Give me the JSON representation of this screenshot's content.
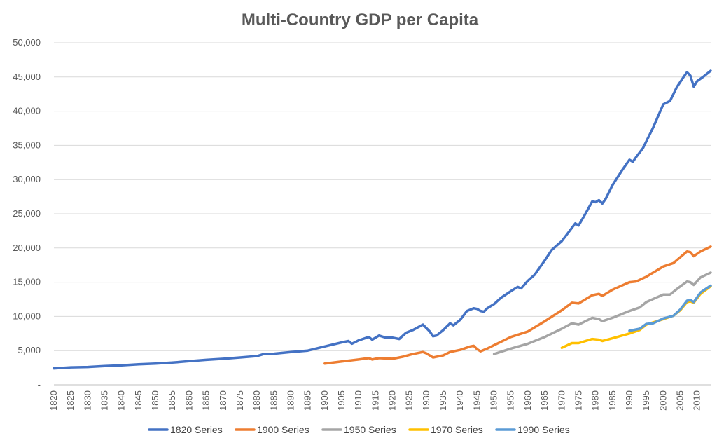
{
  "chart_data": {
    "type": "line",
    "title": "Multi-Country GDP per Capita",
    "xlabel": "",
    "ylabel": "",
    "xlim": [
      1820,
      2014
    ],
    "ylim": [
      0,
      50000
    ],
    "y_ticks": [
      0,
      5000,
      10000,
      15000,
      20000,
      25000,
      30000,
      35000,
      40000,
      45000,
      50000
    ],
    "y_tick_labels": [
      "-",
      "5,000",
      "10,000",
      "15,000",
      "20,000",
      "25,000",
      "30,000",
      "35,000",
      "40,000",
      "45,000",
      "50,000"
    ],
    "x_ticks": [
      1820,
      1825,
      1830,
      1835,
      1840,
      1845,
      1850,
      1855,
      1860,
      1865,
      1870,
      1875,
      1880,
      1885,
      1890,
      1895,
      1900,
      1905,
      1910,
      1915,
      1920,
      1925,
      1930,
      1935,
      1940,
      1945,
      1950,
      1955,
      1960,
      1965,
      1970,
      1975,
      1980,
      1985,
      1990,
      1995,
      2000,
      2005,
      2010
    ],
    "grid": "horizontal",
    "legend_position": "bottom",
    "series": [
      {
        "name": "1820 Series",
        "color": "#4472c4",
        "points": [
          [
            1820,
            2400
          ],
          [
            1825,
            2550
          ],
          [
            1830,
            2600
          ],
          [
            1835,
            2750
          ],
          [
            1840,
            2850
          ],
          [
            1845,
            3000
          ],
          [
            1850,
            3100
          ],
          [
            1855,
            3250
          ],
          [
            1860,
            3450
          ],
          [
            1865,
            3650
          ],
          [
            1870,
            3800
          ],
          [
            1875,
            4000
          ],
          [
            1880,
            4200
          ],
          [
            1882,
            4500
          ],
          [
            1885,
            4550
          ],
          [
            1890,
            4800
          ],
          [
            1895,
            5000
          ],
          [
            1900,
            5600
          ],
          [
            1905,
            6200
          ],
          [
            1907,
            6400
          ],
          [
            1908,
            6000
          ],
          [
            1910,
            6500
          ],
          [
            1913,
            7000
          ],
          [
            1914,
            6600
          ],
          [
            1916,
            7200
          ],
          [
            1918,
            6900
          ],
          [
            1920,
            6900
          ],
          [
            1922,
            6700
          ],
          [
            1924,
            7600
          ],
          [
            1926,
            8000
          ],
          [
            1929,
            8800
          ],
          [
            1930,
            8300
          ],
          [
            1931,
            7800
          ],
          [
            1932,
            7100
          ],
          [
            1933,
            7200
          ],
          [
            1935,
            8000
          ],
          [
            1937,
            9000
          ],
          [
            1938,
            8700
          ],
          [
            1940,
            9500
          ],
          [
            1942,
            10800
          ],
          [
            1944,
            11200
          ],
          [
            1945,
            11100
          ],
          [
            1946,
            10800
          ],
          [
            1947,
            10700
          ],
          [
            1948,
            11200
          ],
          [
            1950,
            11800
          ],
          [
            1952,
            12700
          ],
          [
            1955,
            13700
          ],
          [
            1957,
            14300
          ],
          [
            1958,
            14100
          ],
          [
            1960,
            15200
          ],
          [
            1962,
            16100
          ],
          [
            1965,
            18200
          ],
          [
            1967,
            19700
          ],
          [
            1970,
            21000
          ],
          [
            1972,
            22300
          ],
          [
            1974,
            23600
          ],
          [
            1975,
            23300
          ],
          [
            1977,
            25000
          ],
          [
            1979,
            26800
          ],
          [
            1980,
            26700
          ],
          [
            1981,
            27000
          ],
          [
            1982,
            26500
          ],
          [
            1983,
            27200
          ],
          [
            1985,
            29200
          ],
          [
            1988,
            31500
          ],
          [
            1990,
            32900
          ],
          [
            1991,
            32600
          ],
          [
            1992,
            33300
          ],
          [
            1994,
            34600
          ],
          [
            1997,
            37600
          ],
          [
            2000,
            41000
          ],
          [
            2002,
            41500
          ],
          [
            2004,
            43500
          ],
          [
            2006,
            45000
          ],
          [
            2007,
            45700
          ],
          [
            2008,
            45200
          ],
          [
            2009,
            43600
          ],
          [
            2010,
            44400
          ],
          [
            2012,
            45100
          ],
          [
            2014,
            45900
          ]
        ]
      },
      {
        "name": "1900 Series",
        "color": "#ed7d31",
        "points": [
          [
            1900,
            3100
          ],
          [
            1905,
            3400
          ],
          [
            1910,
            3700
          ],
          [
            1913,
            3900
          ],
          [
            1914,
            3700
          ],
          [
            1916,
            3900
          ],
          [
            1920,
            3800
          ],
          [
            1923,
            4100
          ],
          [
            1926,
            4500
          ],
          [
            1929,
            4800
          ],
          [
            1930,
            4600
          ],
          [
            1932,
            4000
          ],
          [
            1935,
            4300
          ],
          [
            1937,
            4800
          ],
          [
            1940,
            5100
          ],
          [
            1943,
            5600
          ],
          [
            1944,
            5700
          ],
          [
            1945,
            5200
          ],
          [
            1946,
            4900
          ],
          [
            1948,
            5300
          ],
          [
            1950,
            5800
          ],
          [
            1955,
            7000
          ],
          [
            1960,
            7800
          ],
          [
            1965,
            9300
          ],
          [
            1970,
            10900
          ],
          [
            1973,
            12000
          ],
          [
            1975,
            11900
          ],
          [
            1979,
            13100
          ],
          [
            1981,
            13300
          ],
          [
            1982,
            13000
          ],
          [
            1985,
            13900
          ],
          [
            1990,
            15000
          ],
          [
            1992,
            15100
          ],
          [
            1995,
            15800
          ],
          [
            2000,
            17300
          ],
          [
            2003,
            17800
          ],
          [
            2007,
            19500
          ],
          [
            2008,
            19400
          ],
          [
            2009,
            18800
          ],
          [
            2011,
            19500
          ],
          [
            2014,
            20200
          ]
        ]
      },
      {
        "name": "1950 Series",
        "color": "#a5a5a5",
        "points": [
          [
            1950,
            4500
          ],
          [
            1955,
            5300
          ],
          [
            1960,
            6000
          ],
          [
            1965,
            7000
          ],
          [
            1970,
            8200
          ],
          [
            1973,
            9000
          ],
          [
            1975,
            8800
          ],
          [
            1979,
            9800
          ],
          [
            1981,
            9600
          ],
          [
            1982,
            9300
          ],
          [
            1985,
            9800
          ],
          [
            1990,
            10800
          ],
          [
            1993,
            11300
          ],
          [
            1995,
            12100
          ],
          [
            2000,
            13200
          ],
          [
            2002,
            13200
          ],
          [
            2004,
            14000
          ],
          [
            2007,
            15100
          ],
          [
            2008,
            15000
          ],
          [
            2009,
            14600
          ],
          [
            2011,
            15700
          ],
          [
            2014,
            16400
          ]
        ]
      },
      {
        "name": "1970 Series",
        "color": "#ffc000",
        "points": [
          [
            1970,
            5400
          ],
          [
            1973,
            6100
          ],
          [
            1975,
            6100
          ],
          [
            1979,
            6700
          ],
          [
            1981,
            6600
          ],
          [
            1982,
            6400
          ],
          [
            1985,
            6800
          ],
          [
            1990,
            7500
          ],
          [
            1993,
            8000
          ],
          [
            1995,
            8800
          ],
          [
            2000,
            9600
          ],
          [
            2003,
            10100
          ],
          [
            2005,
            10900
          ],
          [
            2007,
            12100
          ],
          [
            2008,
            12200
          ],
          [
            2009,
            12000
          ],
          [
            2011,
            13300
          ],
          [
            2014,
            14400
          ]
        ]
      },
      {
        "name": "1990 Series",
        "color": "#5b9bd5",
        "points": [
          [
            1990,
            7900
          ],
          [
            1993,
            8200
          ],
          [
            1995,
            8900
          ],
          [
            1997,
            9000
          ],
          [
            2000,
            9700
          ],
          [
            2003,
            10100
          ],
          [
            2005,
            11000
          ],
          [
            2007,
            12300
          ],
          [
            2008,
            12400
          ],
          [
            2009,
            12100
          ],
          [
            2011,
            13500
          ],
          [
            2014,
            14500
          ]
        ]
      }
    ]
  }
}
